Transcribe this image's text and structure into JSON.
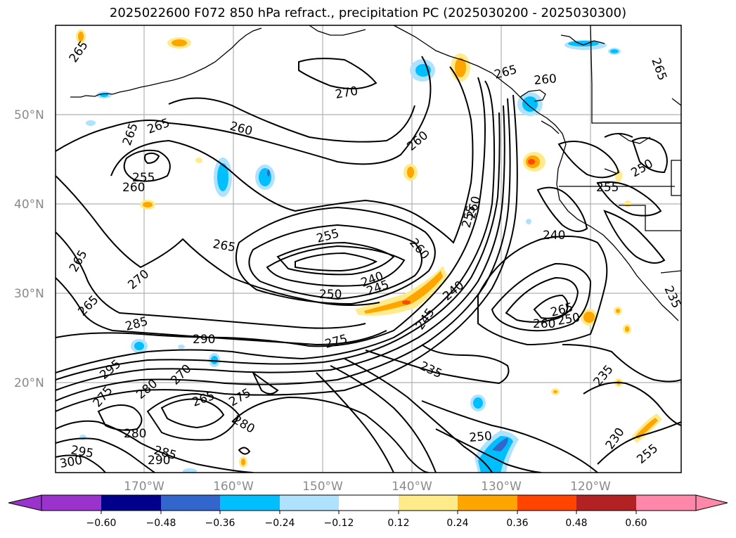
{
  "title": "2025022600 F072 850 hPa refract., precipitation PC (2025030200 - 2025030300)",
  "map": {
    "lat_labels": [
      "50°N",
      "40°N",
      "30°N",
      "20°N"
    ],
    "lon_labels": [
      "170°W",
      "160°W",
      "150°W",
      "140°W",
      "130°W",
      "120°W"
    ],
    "contour_labels": [
      "265",
      "265",
      "265",
      "265",
      "255",
      "260",
      "260",
      "270",
      "260",
      "260",
      "265",
      "265",
      "270",
      "265",
      "265",
      "285",
      "290",
      "295",
      "275",
      "280",
      "270",
      "265",
      "275",
      "280",
      "280",
      "285",
      "290",
      "295",
      "300",
      "255",
      "250",
      "240",
      "245",
      "275",
      "260",
      "245",
      "240",
      "255",
      "260",
      "240",
      "265",
      "260",
      "250",
      "235",
      "235",
      "230",
      "250",
      "255",
      "250",
      "255",
      "235"
    ],
    "colors": {
      "contour": "#000000",
      "coast": "#000000",
      "grid": "#b0b0b0",
      "frame": "#000000"
    }
  },
  "colorbar": {
    "ticks": [
      "−0.60",
      "−0.48",
      "−0.36",
      "−0.24",
      "−0.12",
      "0.12",
      "0.24",
      "0.36",
      "0.48",
      "0.60"
    ],
    "colors": [
      "#9933cc",
      "#00008b",
      "#3366cc",
      "#00bfff",
      "#aee2ff",
      "#ffffff",
      "#ffeb8a",
      "#ffa500",
      "#ff4500",
      "#b22222",
      "#ff88aa"
    ]
  },
  "precip_colors": {
    "light_blue": "#aee2ff",
    "blue": "#00bfff",
    "mid_blue": "#3366cc",
    "light_orange": "#ffeb8a",
    "orange": "#ffa500",
    "red": "#ff4500"
  }
}
